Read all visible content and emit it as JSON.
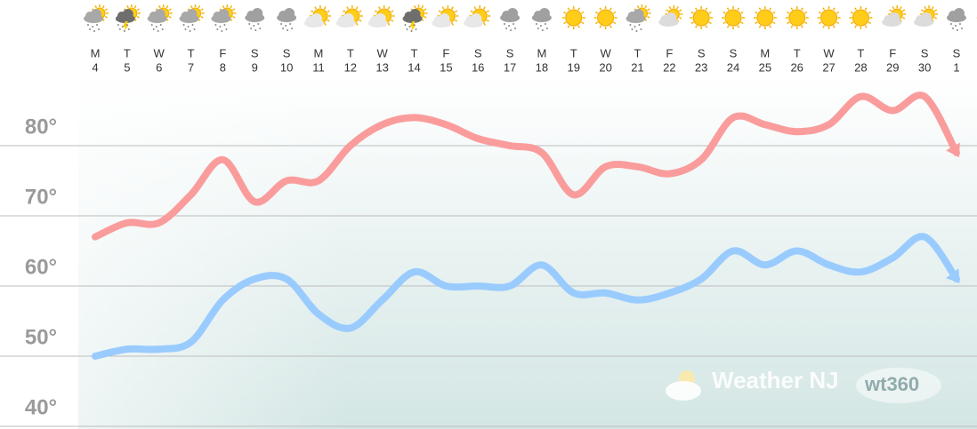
{
  "chart_data": {
    "type": "line",
    "categories": [
      [
        "M",
        "4"
      ],
      [
        "T",
        "5"
      ],
      [
        "W",
        "6"
      ],
      [
        "T",
        "7"
      ],
      [
        "F",
        "8"
      ],
      [
        "S",
        "9"
      ],
      [
        "S",
        "10"
      ],
      [
        "M",
        "11"
      ],
      [
        "T",
        "12"
      ],
      [
        "W",
        "13"
      ],
      [
        "T",
        "14"
      ],
      [
        "F",
        "15"
      ],
      [
        "S",
        "16"
      ],
      [
        "S",
        "17"
      ],
      [
        "M",
        "18"
      ],
      [
        "T",
        "19"
      ],
      [
        "W",
        "20"
      ],
      [
        "T",
        "21"
      ],
      [
        "F",
        "22"
      ],
      [
        "S",
        "23"
      ],
      [
        "S",
        "24"
      ],
      [
        "M",
        "25"
      ],
      [
        "T",
        "26"
      ],
      [
        "W",
        "27"
      ],
      [
        "T",
        "28"
      ],
      [
        "F",
        "29"
      ],
      [
        "S",
        "30"
      ],
      [
        "S",
        "1"
      ]
    ],
    "series": [
      {
        "color": "#fa9c9c",
        "values": [
          67,
          69,
          69,
          73,
          78,
          72,
          75,
          75,
          80,
          83,
          84,
          83,
          81,
          80,
          79,
          73,
          77,
          77,
          76,
          78,
          84,
          83,
          82,
          83,
          87,
          85,
          87,
          79
        ]
      },
      {
        "color": "#99cbff",
        "values": [
          50,
          51,
          51,
          52,
          58,
          61,
          61,
          56,
          54,
          58,
          62,
          60,
          60,
          60,
          63,
          59,
          59,
          58,
          59,
          61,
          65,
          63,
          65,
          63,
          62,
          64,
          67,
          61
        ]
      }
    ],
    "ylim": [
      40,
      90
    ],
    "yticks": [
      {
        "value": 40,
        "label": "40°"
      },
      {
        "value": 50,
        "label": "50°"
      },
      {
        "value": 60,
        "label": "60°"
      },
      {
        "value": 70,
        "label": "70°"
      },
      {
        "value": 80,
        "label": "80°"
      }
    ],
    "grid": true,
    "watermark": "Weather NJ",
    "watermark_logo": "wt360"
  }
}
